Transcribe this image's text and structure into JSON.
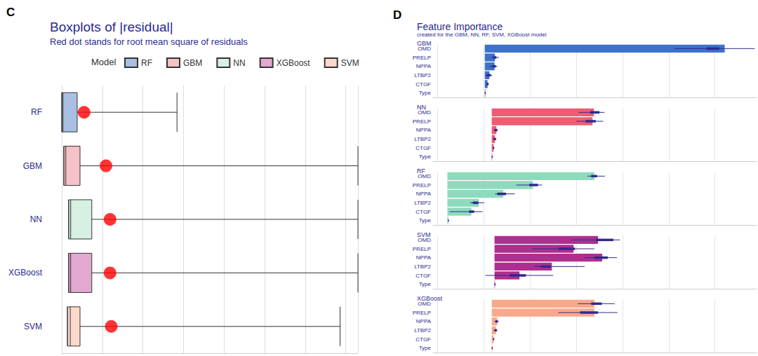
{
  "chart_data": [
    {
      "panel": "C",
      "type": "boxplot",
      "title": "Boxplots of |residual|",
      "subtitle": "Red dot stands for root mean square of residuals",
      "legend_title": "Model",
      "legend": "top",
      "orientation": "horizontal",
      "categories": [
        "RF",
        "GBM",
        "NN",
        "XGBoost",
        "SVM"
      ],
      "series": [
        {
          "name": "RF",
          "color": "#a9c0e4",
          "values": [
            0,
            0,
            0.03,
            0.38,
            2.84
          ]
        },
        {
          "name": "GBM",
          "color": "#f6c1c7",
          "values": [
            0.05,
            0.05,
            0.1,
            0.45,
            7.3
          ]
        },
        {
          "name": "NN",
          "color": "#d6f0e4",
          "values": [
            0.17,
            0.17,
            0.22,
            0.74,
            7.3
          ]
        },
        {
          "name": "XGBoost",
          "color": "#e3a8d0",
          "values": [
            0.17,
            0.17,
            0.22,
            0.74,
            7.3
          ]
        },
        {
          "name": "SVM",
          "color": "#fcd9cc",
          "values": [
            0.14,
            0.14,
            0.21,
            0.45,
            6.86
          ]
        }
      ],
      "rmse": {
        "color": "#ff0000",
        "values": [
          0.55,
          1.09,
          1.19,
          1.19,
          1.22
        ]
      },
      "xlim": [
        0,
        7.3
      ],
      "xticks": [
        0,
        1,
        2,
        3,
        4,
        5,
        6,
        7
      ],
      "grid": true,
      "tick_labels": "y"
    },
    {
      "panel": "D",
      "type": "bar",
      "title": "Feature Importance",
      "subtitle": "created for the GBM, NN, RF, SVM, XGBoost model",
      "orientation": "horizontal",
      "categories": [
        "OMD",
        "PRELP",
        "NPPA",
        "LTBP2",
        "CTGF",
        "Type"
      ],
      "xlim": [
        0.9,
        7.9
      ],
      "xticks": [
        1,
        2,
        3,
        4,
        5,
        6,
        7
      ],
      "grid": true,
      "tick_labels": "y",
      "facets": [
        {
          "name": "GBM",
          "color": "#3d72c9",
          "base": 2.02,
          "values": [
            7.21,
            2.24,
            2.23,
            2.12,
            2.08,
            2.03
          ],
          "whisker": [
            [
              6.12,
              7.86
            ],
            [
              2.15,
              2.33
            ],
            [
              2.12,
              2.29
            ],
            [
              2.03,
              2.18
            ],
            [
              2.05,
              2.11
            ],
            [
              2.02,
              2.04
            ]
          ],
          "box": [
            [
              6.82,
              7.09
            ],
            [
              2.2,
              2.27
            ],
            [
              2.18,
              2.26
            ],
            [
              2.06,
              2.15
            ],
            [
              2.06,
              2.1
            ],
            [
              2.02,
              2.04
            ]
          ]
        },
        {
          "name": "NN",
          "color": "#f05c72",
          "base": 2.17,
          "values": [
            4.38,
            4.35,
            2.27,
            2.24,
            2.21,
            2.18
          ],
          "whisker": [
            [
              4.05,
              4.61
            ],
            [
              4.0,
              4.58
            ],
            [
              2.21,
              2.3
            ],
            [
              2.2,
              2.27
            ],
            [
              2.19,
              2.23
            ],
            [
              2.17,
              2.19
            ]
          ],
          "box": [
            [
              4.3,
              4.5
            ],
            [
              4.2,
              4.42
            ],
            [
              2.23,
              2.29
            ],
            [
              2.21,
              2.26
            ],
            [
              2.2,
              2.22
            ],
            [
              2.17,
              2.19
            ]
          ]
        },
        {
          "name": "RF",
          "color": "#8ddbbc",
          "base": 1.21,
          "values": [
            4.39,
            3.06,
            2.42,
            1.89,
            1.73,
            1.23
          ],
          "whisker": [
            [
              4.24,
              4.62
            ],
            [
              2.7,
              3.26
            ],
            [
              2.24,
              2.67
            ],
            [
              1.7,
              2.0
            ],
            [
              1.26,
              1.97
            ],
            [
              1.22,
              1.24
            ]
          ],
          "box": [
            [
              4.32,
              4.45
            ],
            [
              2.98,
              3.17
            ],
            [
              2.29,
              2.48
            ],
            [
              1.76,
              1.88
            ],
            [
              1.68,
              1.79
            ],
            [
              1.22,
              1.24
            ]
          ]
        },
        {
          "name": "SVM",
          "color": "#ae2f8f",
          "base": 2.23,
          "values": [
            4.47,
            3.94,
            4.56,
            3.47,
            2.77,
            2.24
          ],
          "whisker": [
            [
              3.89,
              4.94
            ],
            [
              3.05,
              4.39
            ],
            [
              4.18,
              4.88
            ],
            [
              3.09,
              4.18
            ],
            [
              2.03,
              3.5
            ],
            [
              2.23,
              2.25
            ]
          ],
          "box": [
            [
              4.42,
              4.8
            ],
            [
              3.62,
              3.97
            ],
            [
              4.39,
              4.68
            ],
            [
              3.23,
              3.44
            ],
            [
              2.56,
              2.91
            ],
            [
              2.23,
              2.25
            ]
          ]
        },
        {
          "name": "XGBoost",
          "color": "#f9a98b",
          "base": 2.17,
          "values": [
            4.39,
            4.39,
            2.29,
            2.26,
            2.21,
            2.18
          ],
          "whisker": [
            [
              4.03,
              4.83
            ],
            [
              3.61,
              4.89
            ],
            [
              2.23,
              2.32
            ],
            [
              2.21,
              2.29
            ],
            [
              2.19,
              2.23
            ],
            [
              2.17,
              2.19
            ]
          ],
          "box": [
            [
              4.32,
              4.55
            ],
            [
              4.08,
              4.47
            ],
            [
              2.25,
              2.3
            ],
            [
              2.23,
              2.28
            ],
            [
              2.2,
              2.22
            ],
            [
              2.17,
              2.19
            ]
          ]
        }
      ]
    }
  ]
}
